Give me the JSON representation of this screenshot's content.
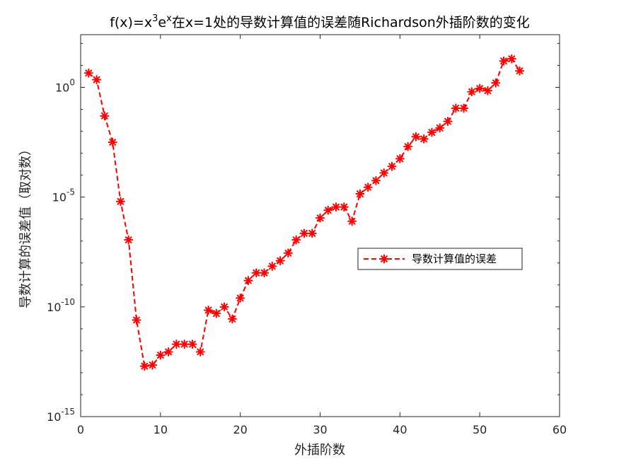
{
  "chart_data": {
    "type": "line",
    "title": {
      "prefix": "f(x)=x",
      "exp1": "3",
      "mid": "e",
      "exp2": "x",
      "suffix": "在x=1处的导数计算值的误差随Richardson外插阶数的变化"
    },
    "xlabel": "外插阶数",
    "ylabel": "导数计算的误差值（取对数）",
    "xlim": [
      0,
      60
    ],
    "ylim_log10": [
      -15,
      2.4
    ],
    "y_scale": "log",
    "grid": false,
    "legend_position": "center-right",
    "x_ticks": [
      {
        "value": 0,
        "label": "0"
      },
      {
        "value": 10,
        "label": "10"
      },
      {
        "value": 20,
        "label": "20"
      },
      {
        "value": 30,
        "label": "30"
      },
      {
        "value": 40,
        "label": "40"
      },
      {
        "value": 50,
        "label": "50"
      },
      {
        "value": 60,
        "label": "60"
      }
    ],
    "y_ticks": [
      {
        "exp": 0,
        "base": "10",
        "power": "0"
      },
      {
        "exp": -5,
        "base": "10",
        "power": "-5"
      },
      {
        "exp": -10,
        "base": "10",
        "power": "-10"
      },
      {
        "exp": -15,
        "base": "10",
        "power": "-15"
      }
    ],
    "series": [
      {
        "name": "导数计算值的误差",
        "color": "#ff0000",
        "line_style": "dashed",
        "marker": "asterisk",
        "x": [
          1,
          2,
          3,
          4,
          5,
          6,
          7,
          8,
          9,
          10,
          11,
          12,
          13,
          14,
          15,
          16,
          17,
          18,
          19,
          20,
          21,
          22,
          23,
          24,
          25,
          26,
          27,
          28,
          29,
          30,
          31,
          32,
          33,
          34,
          35,
          36,
          37,
          38,
          39,
          40,
          41,
          42,
          43,
          44,
          45,
          46,
          47,
          48,
          49,
          50,
          51,
          52,
          53,
          54,
          55
        ],
        "y_log10": [
          0.65,
          0.35,
          -1.3,
          -2.5,
          -5.2,
          -6.95,
          -10.6,
          -12.7,
          -12.65,
          -12.2,
          -12.05,
          -11.7,
          -11.7,
          -11.7,
          -12.05,
          -10.15,
          -10.3,
          -10.0,
          -10.55,
          -9.6,
          -8.8,
          -8.45,
          -8.45,
          -8.15,
          -7.9,
          -7.55,
          -6.95,
          -6.65,
          -6.65,
          -5.95,
          -5.6,
          -5.45,
          -5.45,
          -6.1,
          -4.85,
          -4.55,
          -4.25,
          -3.9,
          -3.6,
          -3.25,
          -2.7,
          -2.25,
          -2.35,
          -2.05,
          -1.85,
          -1.55,
          -0.95,
          -0.95,
          -0.2,
          -0.05,
          -0.15,
          0.2,
          1.2,
          1.3,
          0.75
        ]
      }
    ]
  }
}
